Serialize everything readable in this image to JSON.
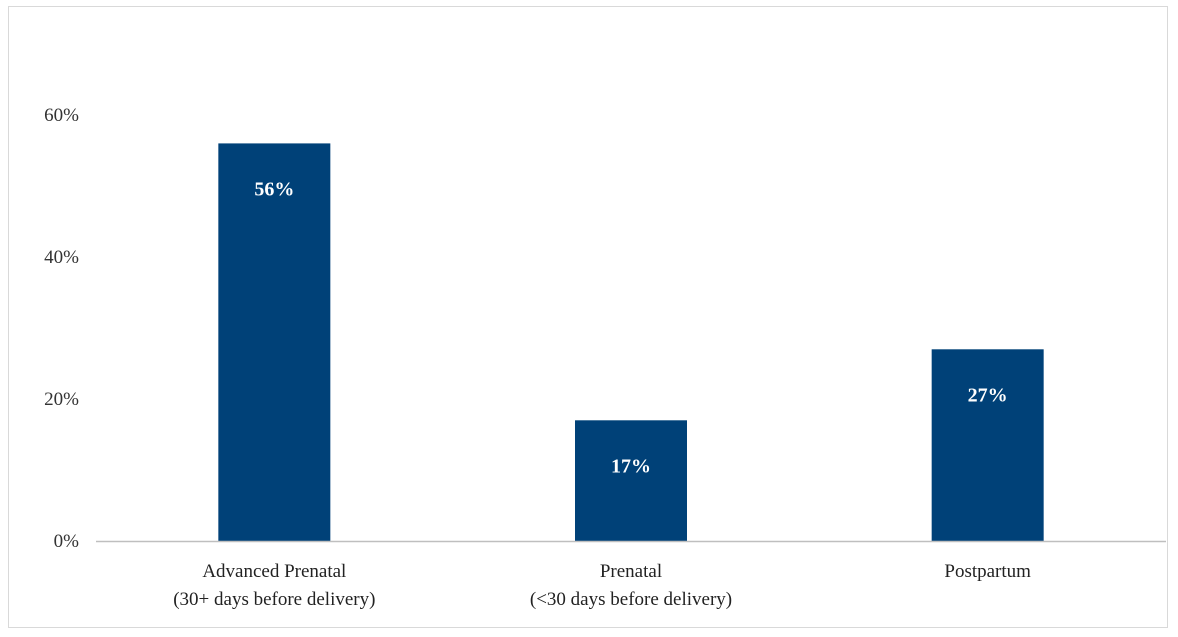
{
  "chart_data": {
    "type": "bar",
    "categories": [
      [
        "Advanced Prenatal",
        "(30+ days before delivery)"
      ],
      [
        "Prenatal",
        "(<30 days before delivery)"
      ],
      [
        "Postpartum"
      ]
    ],
    "values": [
      56,
      17,
      27
    ],
    "data_labels": [
      "56%",
      "17%",
      "27%"
    ],
    "y_ticks": [
      0,
      20,
      40,
      60
    ],
    "y_tick_labels": [
      "0%",
      "20%",
      "40%",
      "60%"
    ],
    "ylim": [
      0,
      60
    ],
    "grid": false,
    "legend": "none",
    "bar_color": "#004178",
    "axis_color": "#bfbfbf",
    "title": "",
    "xlabel": "",
    "ylabel": ""
  }
}
